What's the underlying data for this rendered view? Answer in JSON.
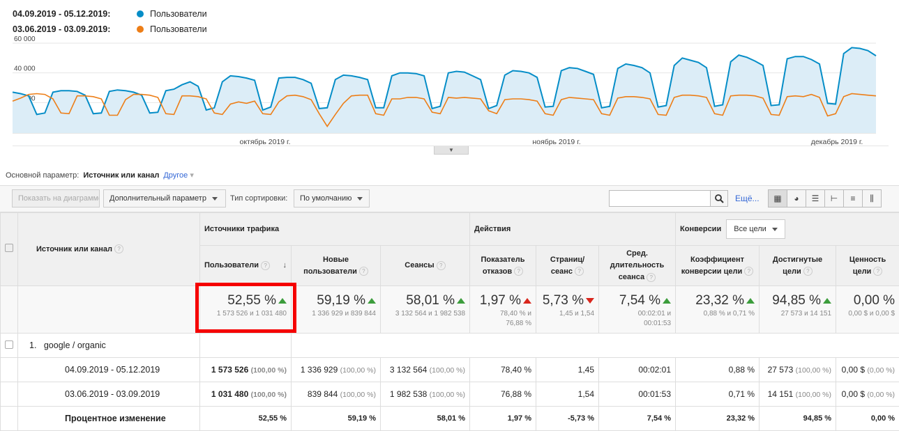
{
  "legend": [
    {
      "range": "04.09.2019 - 05.12.2019:",
      "label": "Пользователи",
      "color": "#058dc7"
    },
    {
      "range": "03.06.2019 - 03.09.2019:",
      "label": "Пользователи",
      "color": "#ed7e17"
    }
  ],
  "chart_data": {
    "type": "line",
    "y_ticks": [
      "60 000",
      "40 000",
      "20 000"
    ],
    "x_labels": [
      "октябрь 2019 г.",
      "ноябрь 2019 г.",
      "декабрь 2019 г."
    ],
    "ylim": [
      0,
      60000
    ],
    "series": [
      {
        "name": "Пользователи",
        "period": "04.09.2019 - 05.12.2019",
        "color": "#058dc7",
        "area": true,
        "values": [
          27000,
          26000,
          24500,
          12000,
          13000,
          27000,
          28000,
          28000,
          27500,
          25000,
          12500,
          13000,
          27500,
          28500,
          28000,
          27000,
          25000,
          13000,
          13500,
          28000,
          29000,
          32000,
          34000,
          31000,
          15000,
          16500,
          34000,
          38000,
          37500,
          36500,
          35000,
          15000,
          17000,
          36500,
          37000,
          37000,
          35500,
          33000,
          16000,
          16500,
          35500,
          38500,
          38000,
          37000,
          35500,
          16500,
          16500,
          38000,
          40000,
          40000,
          39500,
          38000,
          16000,
          17500,
          40000,
          41000,
          40500,
          38000,
          35500,
          16000,
          18000,
          38500,
          41500,
          41000,
          40000,
          37000,
          17000,
          17500,
          41500,
          43500,
          43000,
          41000,
          39000,
          16500,
          17500,
          43000,
          46000,
          45000,
          43500,
          40000,
          17000,
          18000,
          45000,
          50000,
          48500,
          47000,
          43500,
          17500,
          18500,
          47500,
          52000,
          50500,
          48000,
          45000,
          18000,
          18500,
          49500,
          51000,
          51000,
          49000,
          46000,
          19500,
          19000,
          53000,
          57000,
          56500,
          55000,
          51500
        ]
      },
      {
        "name": "Пользователи",
        "period": "03.06.2019 - 03.09.2019",
        "color": "#ed7e17",
        "values": [
          21000,
          23000,
          25500,
          26000,
          25500,
          22500,
          13000,
          12500,
          24500,
          24500,
          24000,
          22500,
          11500,
          11500,
          22000,
          25500,
          25500,
          25000,
          23500,
          12500,
          12000,
          24500,
          24500,
          24000,
          22500,
          13000,
          12000,
          19000,
          20500,
          19500,
          21000,
          12500,
          12000,
          20500,
          24500,
          25000,
          24000,
          22000,
          12500,
          4000,
          12000,
          19500,
          24500,
          25000,
          25000,
          12500,
          11500,
          22500,
          22500,
          23500,
          23500,
          22500,
          13500,
          12500,
          23500,
          23000,
          23500,
          23000,
          22500,
          14500,
          12500,
          22000,
          22500,
          22500,
          22000,
          21000,
          12500,
          11500,
          22000,
          23500,
          23000,
          22500,
          22000,
          12500,
          11500,
          23000,
          24000,
          24000,
          23500,
          22500,
          12000,
          11500,
          23500,
          25000,
          25000,
          24500,
          23500,
          12500,
          11500,
          24500,
          25000,
          25000,
          24500,
          23000,
          12000,
          11500,
          24000,
          24500,
          24000,
          25500,
          23500,
          11000,
          12500,
          24000,
          26000,
          25500,
          25000,
          24500
        ]
      }
    ]
  },
  "dimension": {
    "label": "Основной параметр:",
    "active": "Источник или канал",
    "other": "Другое"
  },
  "toolbar": {
    "plot_rows": "Показать на диаграмме",
    "secondary_dimension": "Дополнительный параметр",
    "sort_type_label": "Тип сортировки:",
    "sort_value": "По умолчанию",
    "search_placeholder": "",
    "more": "Ещё..."
  },
  "table": {
    "dim_header": "Источник или канал",
    "groups": {
      "acquisition": "Источники трафика",
      "behavior": "Действия",
      "conversions": "Конверсии",
      "goals_select": "Все цели"
    },
    "columns": [
      {
        "l1": "Пользователи",
        "l2": ""
      },
      {
        "l1": "Новые пользователи",
        "l2": ""
      },
      {
        "l1": "Сеансы",
        "l2": ""
      },
      {
        "l1": "Показатель",
        "l2": "отказов"
      },
      {
        "l1": "Страниц/",
        "l2": "сеанс"
      },
      {
        "l1": "Сред.",
        "l2": "длительность",
        "l3": "сеанса"
      },
      {
        "l1": "Коэффициент",
        "l2": "конверсии цели"
      },
      {
        "l1": "Достигнутые",
        "l2": "цели"
      },
      {
        "l1": "Ценность",
        "l2": "цели"
      }
    ],
    "totals": [
      {
        "value": "52,55 %",
        "dir": "up",
        "sub": "1 573 526 и 1 031 480"
      },
      {
        "value": "59,19 %",
        "dir": "up",
        "sub": "1 336 929 и 839 844"
      },
      {
        "value": "58,01 %",
        "dir": "up",
        "sub": "3 132 564 и 1 982 538"
      },
      {
        "value": "1,97 %",
        "dir": "up-red",
        "sub": "78,40 % и",
        "sub2": "76,88 %"
      },
      {
        "value": "5,73 %",
        "dir": "down",
        "sub": "1,45 и 1,54"
      },
      {
        "value": "7,54 %",
        "dir": "up",
        "sub": "00:02:01 и",
        "sub2": "00:01:53"
      },
      {
        "value": "23,32 %",
        "dir": "up",
        "sub": "0,88 % и 0,71 %"
      },
      {
        "value": "94,85 %",
        "dir": "up",
        "sub": "27 573 и 14 151"
      },
      {
        "value": "0,00 %",
        "dir": "",
        "sub": "0,00 $ и 0,00 $"
      }
    ],
    "row1": {
      "index": "1.",
      "name": "google / organic"
    },
    "rows": [
      {
        "label": "04.09.2019 - 05.12.2019",
        "cells": [
          [
            "1 573 526",
            "(100,00 %)"
          ],
          [
            "1 336 929",
            "(100,00 %)"
          ],
          [
            "3 132 564",
            "(100,00 %)"
          ],
          [
            "78,40 %",
            ""
          ],
          [
            "1,45",
            ""
          ],
          [
            "00:02:01",
            ""
          ],
          [
            "0,88 %",
            ""
          ],
          [
            "27 573",
            "(100,00 %)"
          ],
          [
            "0,00 $",
            "(0,00 %)"
          ]
        ]
      },
      {
        "label": "03.06.2019 - 03.09.2019",
        "cells": [
          [
            "1 031 480",
            "(100,00 %)"
          ],
          [
            "839 844",
            "(100,00 %)"
          ],
          [
            "1 982 538",
            "(100,00 %)"
          ],
          [
            "76,88 %",
            ""
          ],
          [
            "1,54",
            ""
          ],
          [
            "00:01:53",
            ""
          ],
          [
            "0,71 %",
            ""
          ],
          [
            "14 151",
            "(100,00 %)"
          ],
          [
            "0,00 $",
            "(0,00 %)"
          ]
        ]
      }
    ],
    "change_row": {
      "label": "Процентное изменение",
      "cells": [
        "52,55 %",
        "59,19 %",
        "58,01 %",
        "1,97 %",
        "-5,73 %",
        "7,54 %",
        "23,32 %",
        "94,85 %",
        "0,00 %"
      ]
    }
  }
}
